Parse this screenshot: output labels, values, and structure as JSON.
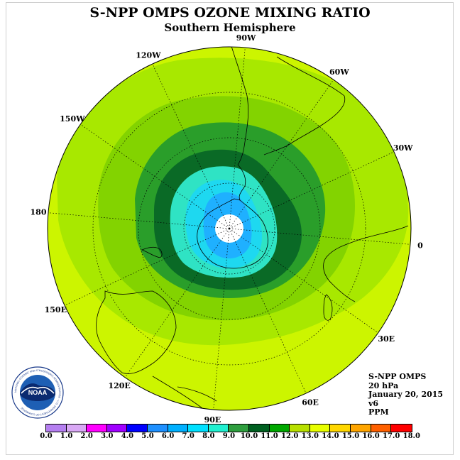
{
  "title": "S-NPP OMPS OZONE MIXING RATIO",
  "subtitle": "Southern Hemisphere",
  "longitude_labels": [
    {
      "text": "90W",
      "bearing": 0
    },
    {
      "text": "60W",
      "bearing": 30
    },
    {
      "text": "30W",
      "bearing": 60
    },
    {
      "text": "0",
      "bearing": 90
    },
    {
      "text": "30E",
      "bearing": 120
    },
    {
      "text": "60E",
      "bearing": 150
    },
    {
      "text": "90E",
      "bearing": 180
    },
    {
      "text": "120E",
      "bearing": 210
    },
    {
      "text": "150E",
      "bearing": 240
    },
    {
      "text": "180",
      "bearing": 270
    },
    {
      "text": "150W",
      "bearing": 300
    },
    {
      "text": "120W",
      "bearing": 330
    }
  ],
  "info": {
    "instrument": "S-NPP OMPS",
    "level": "20 hPa",
    "date": "January 20, 2015",
    "version": "v6",
    "units": "PPM"
  },
  "colorbar": {
    "ticks": [
      "0.0",
      "1.0",
      "2.0",
      "3.0",
      "4.0",
      "5.0",
      "6.0",
      "7.0",
      "8.0",
      "9.0",
      "10.0",
      "11.0",
      "12.0",
      "13.0",
      "14.0",
      "15.0",
      "16.0",
      "17.0",
      "18.0"
    ],
    "colors": [
      "#b57ff0",
      "#d9a8f5",
      "#ff00ff",
      "#a000ff",
      "#0000ff",
      "#1e90ff",
      "#00b0ff",
      "#00e0ff",
      "#20f0d0",
      "#2e9e3e",
      "#006020",
      "#00a800",
      "#b8e000",
      "#e8ff00",
      "#ffd700",
      "#ffa500",
      "#ff6000",
      "#ff0000",
      "#8b5a2b"
    ]
  },
  "colors": {
    "field_outer": "#ccf500",
    "band_11": "#a8e800",
    "band_10": "#83d300",
    "band_9": "#2a9e2a",
    "band_8": "#0a6a26",
    "band_7": "#2fe3c4",
    "band_6": "#1ed8f0",
    "band_5": "#1fb0ff"
  },
  "logo": {
    "text": "NOAA",
    "ring_text": "NATIONAL OCEANIC AND ATMOSPHERIC ADMINISTRATION · U.S. DEPARTMENT OF COMMERCE"
  }
}
